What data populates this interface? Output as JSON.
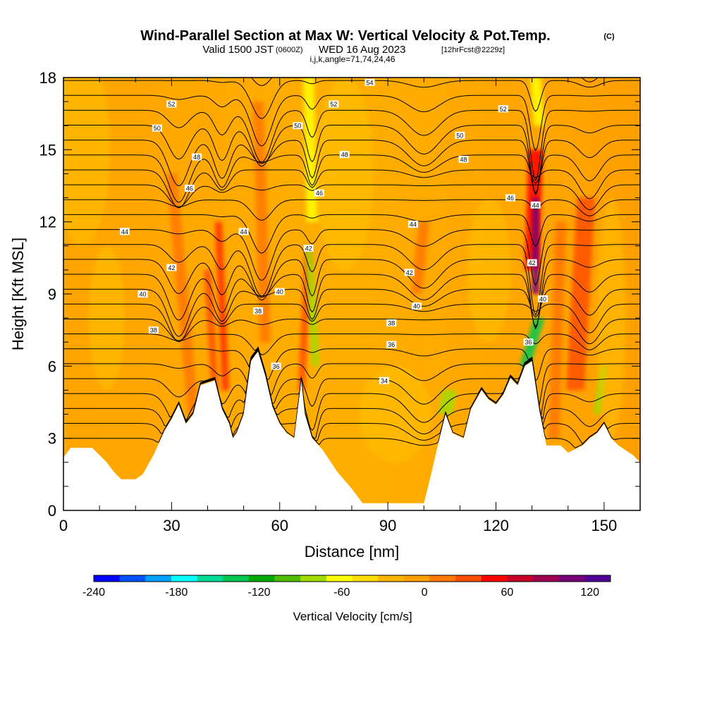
{
  "title": {
    "main": "Wind-Parallel Section at Max W: Vertical Velocity & Pot.Temp.",
    "copyright": "(C)",
    "valid_prefix": "Valid 1500 JST",
    "valid_utc": "(0600Z)",
    "valid_date": "WED 16 Aug 2023",
    "forecast": "[12hrFcst@2229z]",
    "indices": "i,j,k,angle=71,74,24,46"
  },
  "chart_data": {
    "type": "heatmap",
    "xlabel": "Distance [nm]",
    "ylabel": "Height [Kft MSL]",
    "xlim": [
      0,
      160
    ],
    "ylim": [
      0,
      18
    ],
    "x_ticks": [
      0,
      30,
      60,
      90,
      120,
      150
    ],
    "y_ticks": [
      0,
      3,
      6,
      9,
      12,
      15,
      18
    ],
    "colorbar": {
      "title": "Vertical Velocity [cm/s]",
      "range": [
        -240,
        135
      ],
      "tick_values": [
        -240,
        -180,
        -120,
        -60,
        0,
        60,
        120
      ],
      "colors": [
        "#0000ff",
        "#0050ff",
        "#00a0ff",
        "#00ffff",
        "#00dc96",
        "#00c850",
        "#00aa00",
        "#50be00",
        "#a0dc00",
        "#ffff00",
        "#ffdc00",
        "#ffb400",
        "#ffa000",
        "#ff7800",
        "#ff5000",
        "#ff0000",
        "#c80028",
        "#a00050",
        "#780078",
        "#500096"
      ]
    },
    "terrain_kft": [
      [
        0,
        2.2
      ],
      [
        2,
        2.6
      ],
      [
        8,
        2.6
      ],
      [
        12,
        2.0
      ],
      [
        14,
        1.6
      ],
      [
        16,
        1.3
      ],
      [
        20,
        1.3
      ],
      [
        22,
        1.5
      ],
      [
        25,
        2.3
      ],
      [
        28,
        3.3
      ],
      [
        30,
        3.8
      ],
      [
        32,
        4.4
      ],
      [
        34,
        3.6
      ],
      [
        36,
        4.0
      ],
      [
        38,
        5.2
      ],
      [
        42,
        5.4
      ],
      [
        44,
        4.2
      ],
      [
        46,
        3.6
      ],
      [
        47,
        3.0
      ],
      [
        48,
        3.2
      ],
      [
        50,
        4.0
      ],
      [
        52,
        6.2
      ],
      [
        54,
        6.6
      ],
      [
        56,
        5.6
      ],
      [
        58,
        4.3
      ],
      [
        60,
        3.6
      ],
      [
        62,
        3.2
      ],
      [
        64,
        3.0
      ],
      [
        66,
        5.4
      ],
      [
        67,
        4.0
      ],
      [
        69,
        3.0
      ],
      [
        72,
        2.5
      ],
      [
        76,
        1.6
      ],
      [
        80,
        0.9
      ],
      [
        83,
        0.3
      ],
      [
        100,
        0.3
      ],
      [
        102,
        1.5
      ],
      [
        104,
        2.8
      ],
      [
        106,
        4.0
      ],
      [
        108,
        3.2
      ],
      [
        111,
        3.0
      ],
      [
        113,
        4.2
      ],
      [
        116,
        5.0
      ],
      [
        118,
        4.6
      ],
      [
        120,
        4.4
      ],
      [
        122,
        4.8
      ],
      [
        124,
        5.5
      ],
      [
        126,
        5.2
      ],
      [
        128,
        6.0
      ],
      [
        130,
        6.2
      ],
      [
        132,
        4.2
      ],
      [
        134,
        2.7
      ],
      [
        138,
        2.7
      ],
      [
        140,
        2.4
      ],
      [
        144,
        2.7
      ],
      [
        146,
        3.0
      ],
      [
        148,
        3.2
      ],
      [
        150,
        3.6
      ],
      [
        152,
        3.0
      ],
      [
        154,
        2.7
      ],
      [
        158,
        2.3
      ],
      [
        160,
        2.0
      ]
    ],
    "contour_labels": [
      {
        "x": 85,
        "y": 17.8,
        "text": "54"
      },
      {
        "x": 30,
        "y": 16.9,
        "text": "52"
      },
      {
        "x": 75,
        "y": 16.9,
        "text": "52"
      },
      {
        "x": 122,
        "y": 16.7,
        "text": "52"
      },
      {
        "x": 26,
        "y": 15.9,
        "text": "50"
      },
      {
        "x": 65,
        "y": 16.0,
        "text": "50"
      },
      {
        "x": 110,
        "y": 15.6,
        "text": "50"
      },
      {
        "x": 37,
        "y": 14.7,
        "text": "48"
      },
      {
        "x": 78,
        "y": 14.8,
        "text": "48"
      },
      {
        "x": 111,
        "y": 14.6,
        "text": "48"
      },
      {
        "x": 35,
        "y": 13.4,
        "text": "46"
      },
      {
        "x": 71,
        "y": 13.2,
        "text": "46"
      },
      {
        "x": 124,
        "y": 13.0,
        "text": "46"
      },
      {
        "x": 17,
        "y": 11.6,
        "text": "44"
      },
      {
        "x": 50,
        "y": 11.6,
        "text": "44"
      },
      {
        "x": 97,
        "y": 11.9,
        "text": "44"
      },
      {
        "x": 131,
        "y": 12.7,
        "text": "44"
      },
      {
        "x": 30,
        "y": 10.1,
        "text": "42"
      },
      {
        "x": 68,
        "y": 10.9,
        "text": "42"
      },
      {
        "x": 96,
        "y": 9.9,
        "text": "42"
      },
      {
        "x": 130,
        "y": 10.3,
        "text": "42"
      },
      {
        "x": 22,
        "y": 9.0,
        "text": "40"
      },
      {
        "x": 60,
        "y": 9.1,
        "text": "40"
      },
      {
        "x": 98,
        "y": 8.5,
        "text": "40"
      },
      {
        "x": 133,
        "y": 8.8,
        "text": "40"
      },
      {
        "x": 25,
        "y": 7.5,
        "text": "38"
      },
      {
        "x": 54,
        "y": 8.3,
        "text": "38"
      },
      {
        "x": 91,
        "y": 7.8,
        "text": "38"
      },
      {
        "x": 91,
        "y": 6.9,
        "text": "36"
      },
      {
        "x": 129,
        "y": 7.0,
        "text": "36"
      },
      {
        "x": 59,
        "y": 6.0,
        "text": "36"
      },
      {
        "x": 89,
        "y": 5.4,
        "text": "34"
      }
    ],
    "contour_levels": [
      30,
      31,
      32,
      33,
      34,
      35,
      36,
      37,
      38,
      39,
      40,
      41,
      42,
      43,
      44,
      45,
      46,
      47,
      48,
      49,
      50,
      51,
      52,
      53,
      54,
      55
    ]
  }
}
